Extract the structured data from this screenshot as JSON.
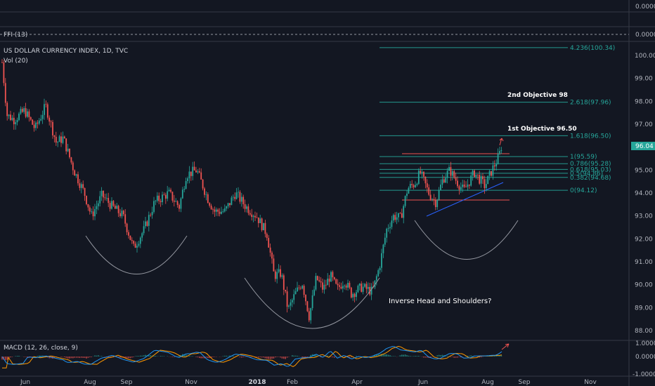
{
  "top_pane": {
    "value": "0.0000"
  },
  "ffi_pane": {
    "label": "FFI (13)",
    "value": "0.0000"
  },
  "main_pane": {
    "symbol": "US DOLLAR CURRENCY INDEX, 1D, TVC",
    "volume": "Vol (20)",
    "last_price": "96.04",
    "last_price_color": "#26a69a"
  },
  "price_axis": [
    "100.00",
    "99.00",
    "98.00",
    "97.00",
    "96.00",
    "95.00",
    "94.00",
    "93.00",
    "92.00",
    "91.00",
    "90.00",
    "89.00",
    "88.00"
  ],
  "fib_levels": [
    {
      "label": "4.236(100.34)",
      "price": 100.34
    },
    {
      "label": "2.618(97.96)",
      "price": 97.96
    },
    {
      "label": "1.618(96.50)",
      "price": 96.5
    },
    {
      "label": "1(95.59)",
      "price": 95.59
    },
    {
      "label": "0.786(95.28)",
      "price": 95.28
    },
    {
      "label": "0.618(95.03)",
      "price": 95.03
    },
    {
      "label": "0.5(94.86)",
      "price": 94.86
    },
    {
      "label": "0.382(94.68)",
      "price": 94.68
    },
    {
      "label": "0(94.12)",
      "price": 94.12
    }
  ],
  "annotations": {
    "objective_2": "2nd Objective 98",
    "objective_1": "1st Objective 96.50",
    "pattern": "Inverse Head and Shoulders?"
  },
  "macd_pane": {
    "label": "MACD (12, 26, close, 9)",
    "axis": [
      "1.0000",
      "0.0000",
      "-1.0000"
    ]
  },
  "time_axis": [
    "Jun",
    "Aug",
    "Sep",
    "Nov",
    "2018",
    "Feb",
    "Apr",
    "Jun",
    "Aug",
    "Sep",
    "Nov"
  ],
  "chart_data": {
    "type": "candlestick",
    "title": "US DOLLAR CURRENCY INDEX, 1D, TVC",
    "ylim": [
      87.5,
      100.6
    ],
    "close_series": [
      {
        "t": "2017-05-10",
        "v": 99.7
      },
      {
        "t": "2017-05-20",
        "v": 97.4
      },
      {
        "t": "2017-06-01",
        "v": 97.0
      },
      {
        "t": "2017-06-15",
        "v": 97.6
      },
      {
        "t": "2017-07-01",
        "v": 95.6
      },
      {
        "t": "2017-07-15",
        "v": 95.0
      },
      {
        "t": "2017-08-01",
        "v": 92.9
      },
      {
        "t": "2017-08-15",
        "v": 93.6
      },
      {
        "t": "2017-09-01",
        "v": 92.7
      },
      {
        "t": "2017-09-08",
        "v": 91.4
      },
      {
        "t": "2017-09-20",
        "v": 92.3
      },
      {
        "t": "2017-10-01",
        "v": 93.4
      },
      {
        "t": "2017-10-15",
        "v": 93.6
      },
      {
        "t": "2017-11-01",
        "v": 94.7
      },
      {
        "t": "2017-11-10",
        "v": 94.9
      },
      {
        "t": "2017-11-25",
        "v": 92.9
      },
      {
        "t": "2017-12-10",
        "v": 93.7
      },
      {
        "t": "2017-12-25",
        "v": 93.4
      },
      {
        "t": "2018-01-10",
        "v": 92.0
      },
      {
        "t": "2018-01-25",
        "v": 89.3
      },
      {
        "t": "2018-02-05",
        "v": 89.0
      },
      {
        "t": "2018-02-15",
        "v": 88.6
      },
      {
        "t": "2018-03-01",
        "v": 90.2
      },
      {
        "t": "2018-03-15",
        "v": 89.9
      },
      {
        "t": "2018-04-01",
        "v": 90.0
      },
      {
        "t": "2018-04-15",
        "v": 89.6
      },
      {
        "t": "2018-05-01",
        "v": 91.9
      },
      {
        "t": "2018-05-15",
        "v": 93.2
      },
      {
        "t": "2018-06-01",
        "v": 94.3
      },
      {
        "t": "2018-06-15",
        "v": 94.9
      },
      {
        "t": "2018-06-25",
        "v": 94.6
      },
      {
        "t": "2018-07-10",
        "v": 94.3
      },
      {
        "t": "2018-07-25",
        "v": 94.6
      },
      {
        "t": "2018-08-10",
        "v": 96.0
      },
      {
        "t": "2018-08-15",
        "v": 96.04
      }
    ]
  }
}
